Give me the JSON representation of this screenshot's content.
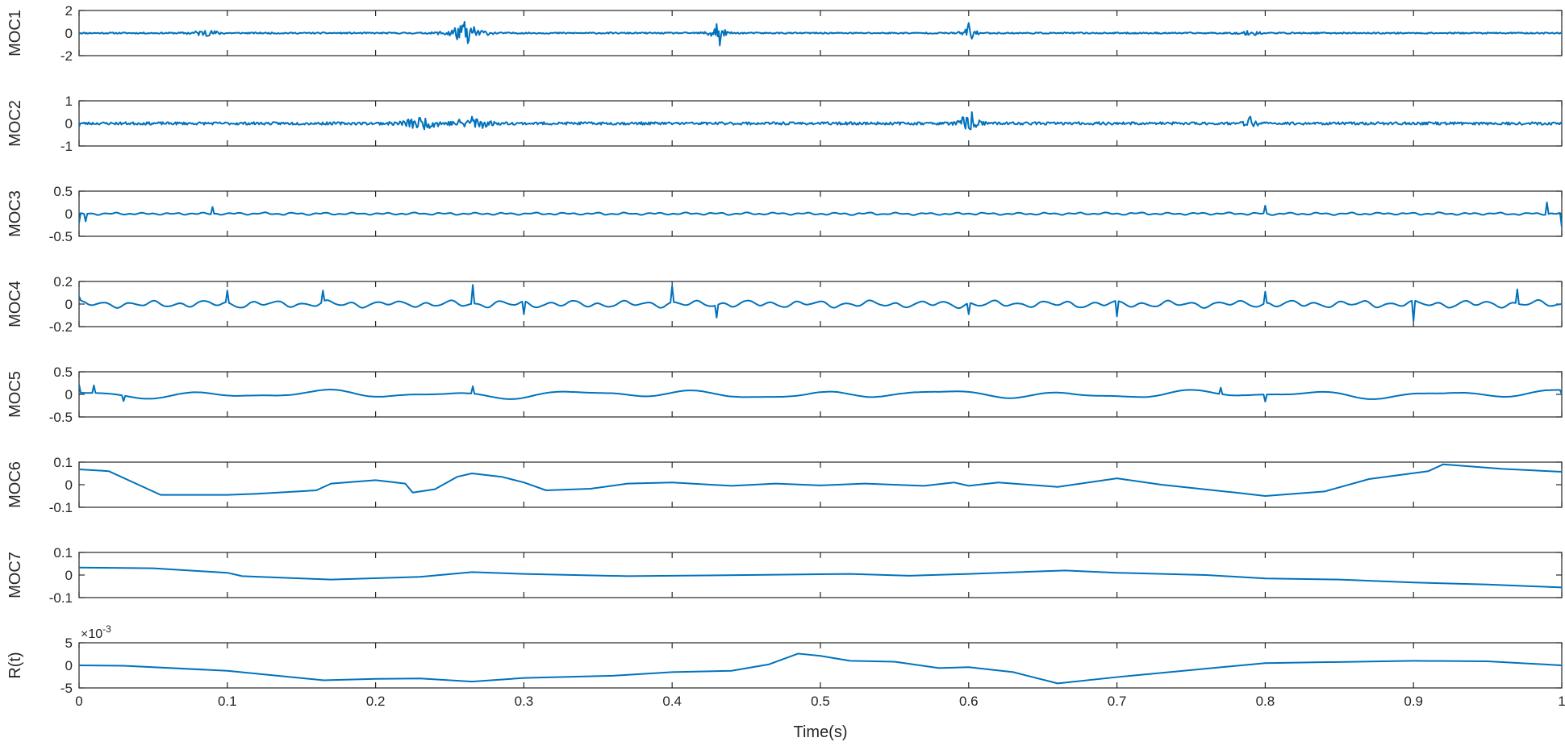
{
  "chart_data": {
    "type": "line",
    "layout": "stacked-subplots",
    "xlabel": "Time(s)",
    "xlim": [
      0,
      1
    ],
    "xticks": [
      0,
      0.1,
      0.2,
      0.3,
      0.4,
      0.5,
      0.6,
      0.7,
      0.8,
      0.9,
      1
    ],
    "xtick_labels": [
      "0",
      "0.1",
      "0.2",
      "0.3",
      "0.4",
      "0.5",
      "0.6",
      "0.7",
      "0.8",
      "0.9",
      "1"
    ],
    "line_color": "#0072BD",
    "grid": false,
    "panels": [
      {
        "ylabel": "MOC1",
        "ylim": [
          -2,
          2
        ],
        "yticks": [
          -2,
          0,
          2
        ],
        "ytick_labels": [
          "-2",
          "0",
          "2"
        ],
        "signal": {
          "kind": "noise",
          "amplitude": 0.06,
          "seed": 11,
          "bursts": [
            [
              0.085,
              0.01,
              0.22
            ],
            [
              0.26,
              0.012,
              0.7
            ],
            [
              0.43,
              0.006,
              0.55
            ],
            [
              0.6,
              0.005,
              0.45
            ],
            [
              0.79,
              0.008,
              0.15
            ]
          ]
        },
        "points": [
          [
            0,
            0
          ],
          [
            0.085,
            0.2
          ],
          [
            0.26,
            1.0
          ],
          [
            0.262,
            -0.9
          ],
          [
            0.43,
            0.8
          ],
          [
            0.432,
            -1.1
          ],
          [
            0.6,
            0.9
          ],
          [
            0.602,
            -0.5
          ],
          [
            1,
            0
          ]
        ]
      },
      {
        "ylabel": "MOC2",
        "ylim": [
          -1,
          1
        ],
        "yticks": [
          -1,
          0,
          1
        ],
        "ytick_labels": [
          "-1",
          "0",
          "1"
        ],
        "signal": {
          "kind": "noise",
          "amplitude": 0.06,
          "seed": 23,
          "bursts": [
            [
              0.23,
              0.012,
              0.22
            ],
            [
              0.265,
              0.01,
              0.28
            ],
            [
              0.6,
              0.006,
              0.4
            ],
            [
              0.79,
              0.004,
              0.25
            ]
          ]
        },
        "points": [
          [
            0,
            -0.15
          ],
          [
            0.23,
            0.25
          ],
          [
            0.265,
            0.3
          ],
          [
            0.6,
            -0.2
          ],
          [
            0.602,
            0.5
          ],
          [
            0.79,
            0.3
          ],
          [
            1,
            0
          ]
        ]
      },
      {
        "ylabel": "MOC3",
        "ylim": [
          -0.5,
          0.5
        ],
        "yticks": [
          -0.5,
          0,
          0.5
        ],
        "ytick_labels": [
          "-0.5",
          "0",
          "0.5"
        ],
        "signal": {
          "kind": "osc",
          "amplitude": 0.07,
          "freq": 120,
          "seed": 37,
          "smooth": 2
        },
        "points": [
          [
            0,
            -0.2
          ],
          [
            0.005,
            -0.17
          ],
          [
            0.09,
            0.15
          ],
          [
            0.8,
            0.18
          ],
          [
            0.99,
            0.25
          ],
          [
            1,
            -0.3
          ]
        ]
      },
      {
        "ylabel": "MOC4",
        "ylim": [
          -0.2,
          0.2
        ],
        "yticks": [
          -0.2,
          0,
          0.2
        ],
        "ytick_labels": [
          "-0.2",
          "0",
          "0.2"
        ],
        "signal": {
          "kind": "osc",
          "amplitude": 0.055,
          "freq": 60,
          "seed": 53,
          "smooth": 3
        },
        "points": [
          [
            0,
            0.07
          ],
          [
            0.1,
            0.12
          ],
          [
            0.165,
            0.12
          ],
          [
            0.265,
            0.17
          ],
          [
            0.3,
            -0.09
          ],
          [
            0.4,
            0.16
          ],
          [
            0.43,
            -0.12
          ],
          [
            0.6,
            -0.09
          ],
          [
            0.7,
            -0.11
          ],
          [
            0.8,
            0.11
          ],
          [
            0.9,
            -0.15
          ],
          [
            0.97,
            0.13
          ],
          [
            1,
            0
          ]
        ]
      },
      {
        "ylabel": "MOC5",
        "ylim": [
          -0.5,
          0.5
        ],
        "yticks": [
          -0.5,
          0,
          0.5
        ],
        "ytick_labels": [
          "-0.5",
          "0",
          "0.5"
        ],
        "signal": {
          "kind": "osc",
          "amplitude": 0.11,
          "freq": 12,
          "seed": 71,
          "smooth": 8
        },
        "points": [
          [
            0,
            0.22
          ],
          [
            0.01,
            0.2
          ],
          [
            0.03,
            -0.15
          ],
          [
            0.265,
            0.18
          ],
          [
            0.77,
            0.15
          ],
          [
            0.8,
            -0.16
          ],
          [
            1,
            0
          ]
        ]
      },
      {
        "ylabel": "MOC6",
        "ylim": [
          -0.1,
          0.1
        ],
        "yticks": [
          -0.1,
          0,
          0.1
        ],
        "ytick_labels": [
          "-0.1",
          "0",
          "0.1"
        ],
        "signal": {
          "kind": "interp"
        },
        "points": [
          [
            0,
            0.068
          ],
          [
            0.02,
            0.06
          ],
          [
            0.055,
            -0.045
          ],
          [
            0.1,
            -0.045
          ],
          [
            0.12,
            -0.04
          ],
          [
            0.16,
            -0.025
          ],
          [
            0.17,
            0.005
          ],
          [
            0.2,
            0.02
          ],
          [
            0.22,
            0.005
          ],
          [
            0.225,
            -0.035
          ],
          [
            0.24,
            -0.02
          ],
          [
            0.255,
            0.035
          ],
          [
            0.265,
            0.05
          ],
          [
            0.285,
            0.035
          ],
          [
            0.3,
            0.01
          ],
          [
            0.315,
            -0.025
          ],
          [
            0.345,
            -0.018
          ],
          [
            0.37,
            0.005
          ],
          [
            0.4,
            0.01
          ],
          [
            0.44,
            -0.005
          ],
          [
            0.47,
            0.005
          ],
          [
            0.5,
            -0.003
          ],
          [
            0.53,
            0.005
          ],
          [
            0.57,
            -0.005
          ],
          [
            0.59,
            0.01
          ],
          [
            0.6,
            -0.005
          ],
          [
            0.62,
            0.01
          ],
          [
            0.66,
            -0.01
          ],
          [
            0.7,
            0.028
          ],
          [
            0.73,
            0.0
          ],
          [
            0.78,
            -0.035
          ],
          [
            0.8,
            -0.05
          ],
          [
            0.84,
            -0.03
          ],
          [
            0.87,
            0.025
          ],
          [
            0.91,
            0.06
          ],
          [
            0.92,
            0.09
          ],
          [
            0.96,
            0.07
          ],
          [
            1,
            0.057
          ]
        ]
      },
      {
        "ylabel": "MOC7",
        "ylim": [
          -0.1,
          0.1
        ],
        "yticks": [
          -0.1,
          0,
          0.1
        ],
        "ytick_labels": [
          "-0.1",
          "0",
          "0.1"
        ],
        "signal": {
          "kind": "interp"
        },
        "points": [
          [
            0,
            0.033
          ],
          [
            0.05,
            0.03
          ],
          [
            0.1,
            0.01
          ],
          [
            0.11,
            -0.005
          ],
          [
            0.15,
            -0.015
          ],
          [
            0.17,
            -0.02
          ],
          [
            0.23,
            -0.008
          ],
          [
            0.265,
            0.013
          ],
          [
            0.3,
            0.005
          ],
          [
            0.37,
            -0.005
          ],
          [
            0.45,
            0.0
          ],
          [
            0.52,
            0.005
          ],
          [
            0.56,
            -0.003
          ],
          [
            0.6,
            0.005
          ],
          [
            0.665,
            0.02
          ],
          [
            0.7,
            0.01
          ],
          [
            0.76,
            0.0
          ],
          [
            0.8,
            -0.015
          ],
          [
            0.85,
            -0.02
          ],
          [
            0.9,
            -0.033
          ],
          [
            0.95,
            -0.042
          ],
          [
            1,
            -0.055
          ]
        ]
      },
      {
        "ylabel": "R(t)",
        "ylim": [
          -5,
          5
        ],
        "yticks": [
          -5,
          0,
          5
        ],
        "ytick_labels": [
          "-5",
          "0",
          "5"
        ],
        "exponent_label": "×10",
        "exponent_power": "-3",
        "signal": {
          "kind": "interp"
        },
        "points": [
          [
            0,
            0.0
          ],
          [
            0.03,
            -0.1
          ],
          [
            0.1,
            -1.2
          ],
          [
            0.165,
            -3.3
          ],
          [
            0.2,
            -3.0
          ],
          [
            0.23,
            -2.9
          ],
          [
            0.265,
            -3.6
          ],
          [
            0.3,
            -2.8
          ],
          [
            0.36,
            -2.3
          ],
          [
            0.4,
            -1.5
          ],
          [
            0.44,
            -1.2
          ],
          [
            0.465,
            0.2
          ],
          [
            0.485,
            2.6
          ],
          [
            0.5,
            2.1
          ],
          [
            0.52,
            1.0
          ],
          [
            0.55,
            0.8
          ],
          [
            0.58,
            -0.6
          ],
          [
            0.6,
            -0.4
          ],
          [
            0.63,
            -1.5
          ],
          [
            0.66,
            -4.0
          ],
          [
            0.7,
            -2.6
          ],
          [
            0.8,
            0.5
          ],
          [
            0.9,
            1.0
          ],
          [
            0.95,
            0.9
          ],
          [
            1,
            0.0
          ]
        ]
      }
    ]
  }
}
